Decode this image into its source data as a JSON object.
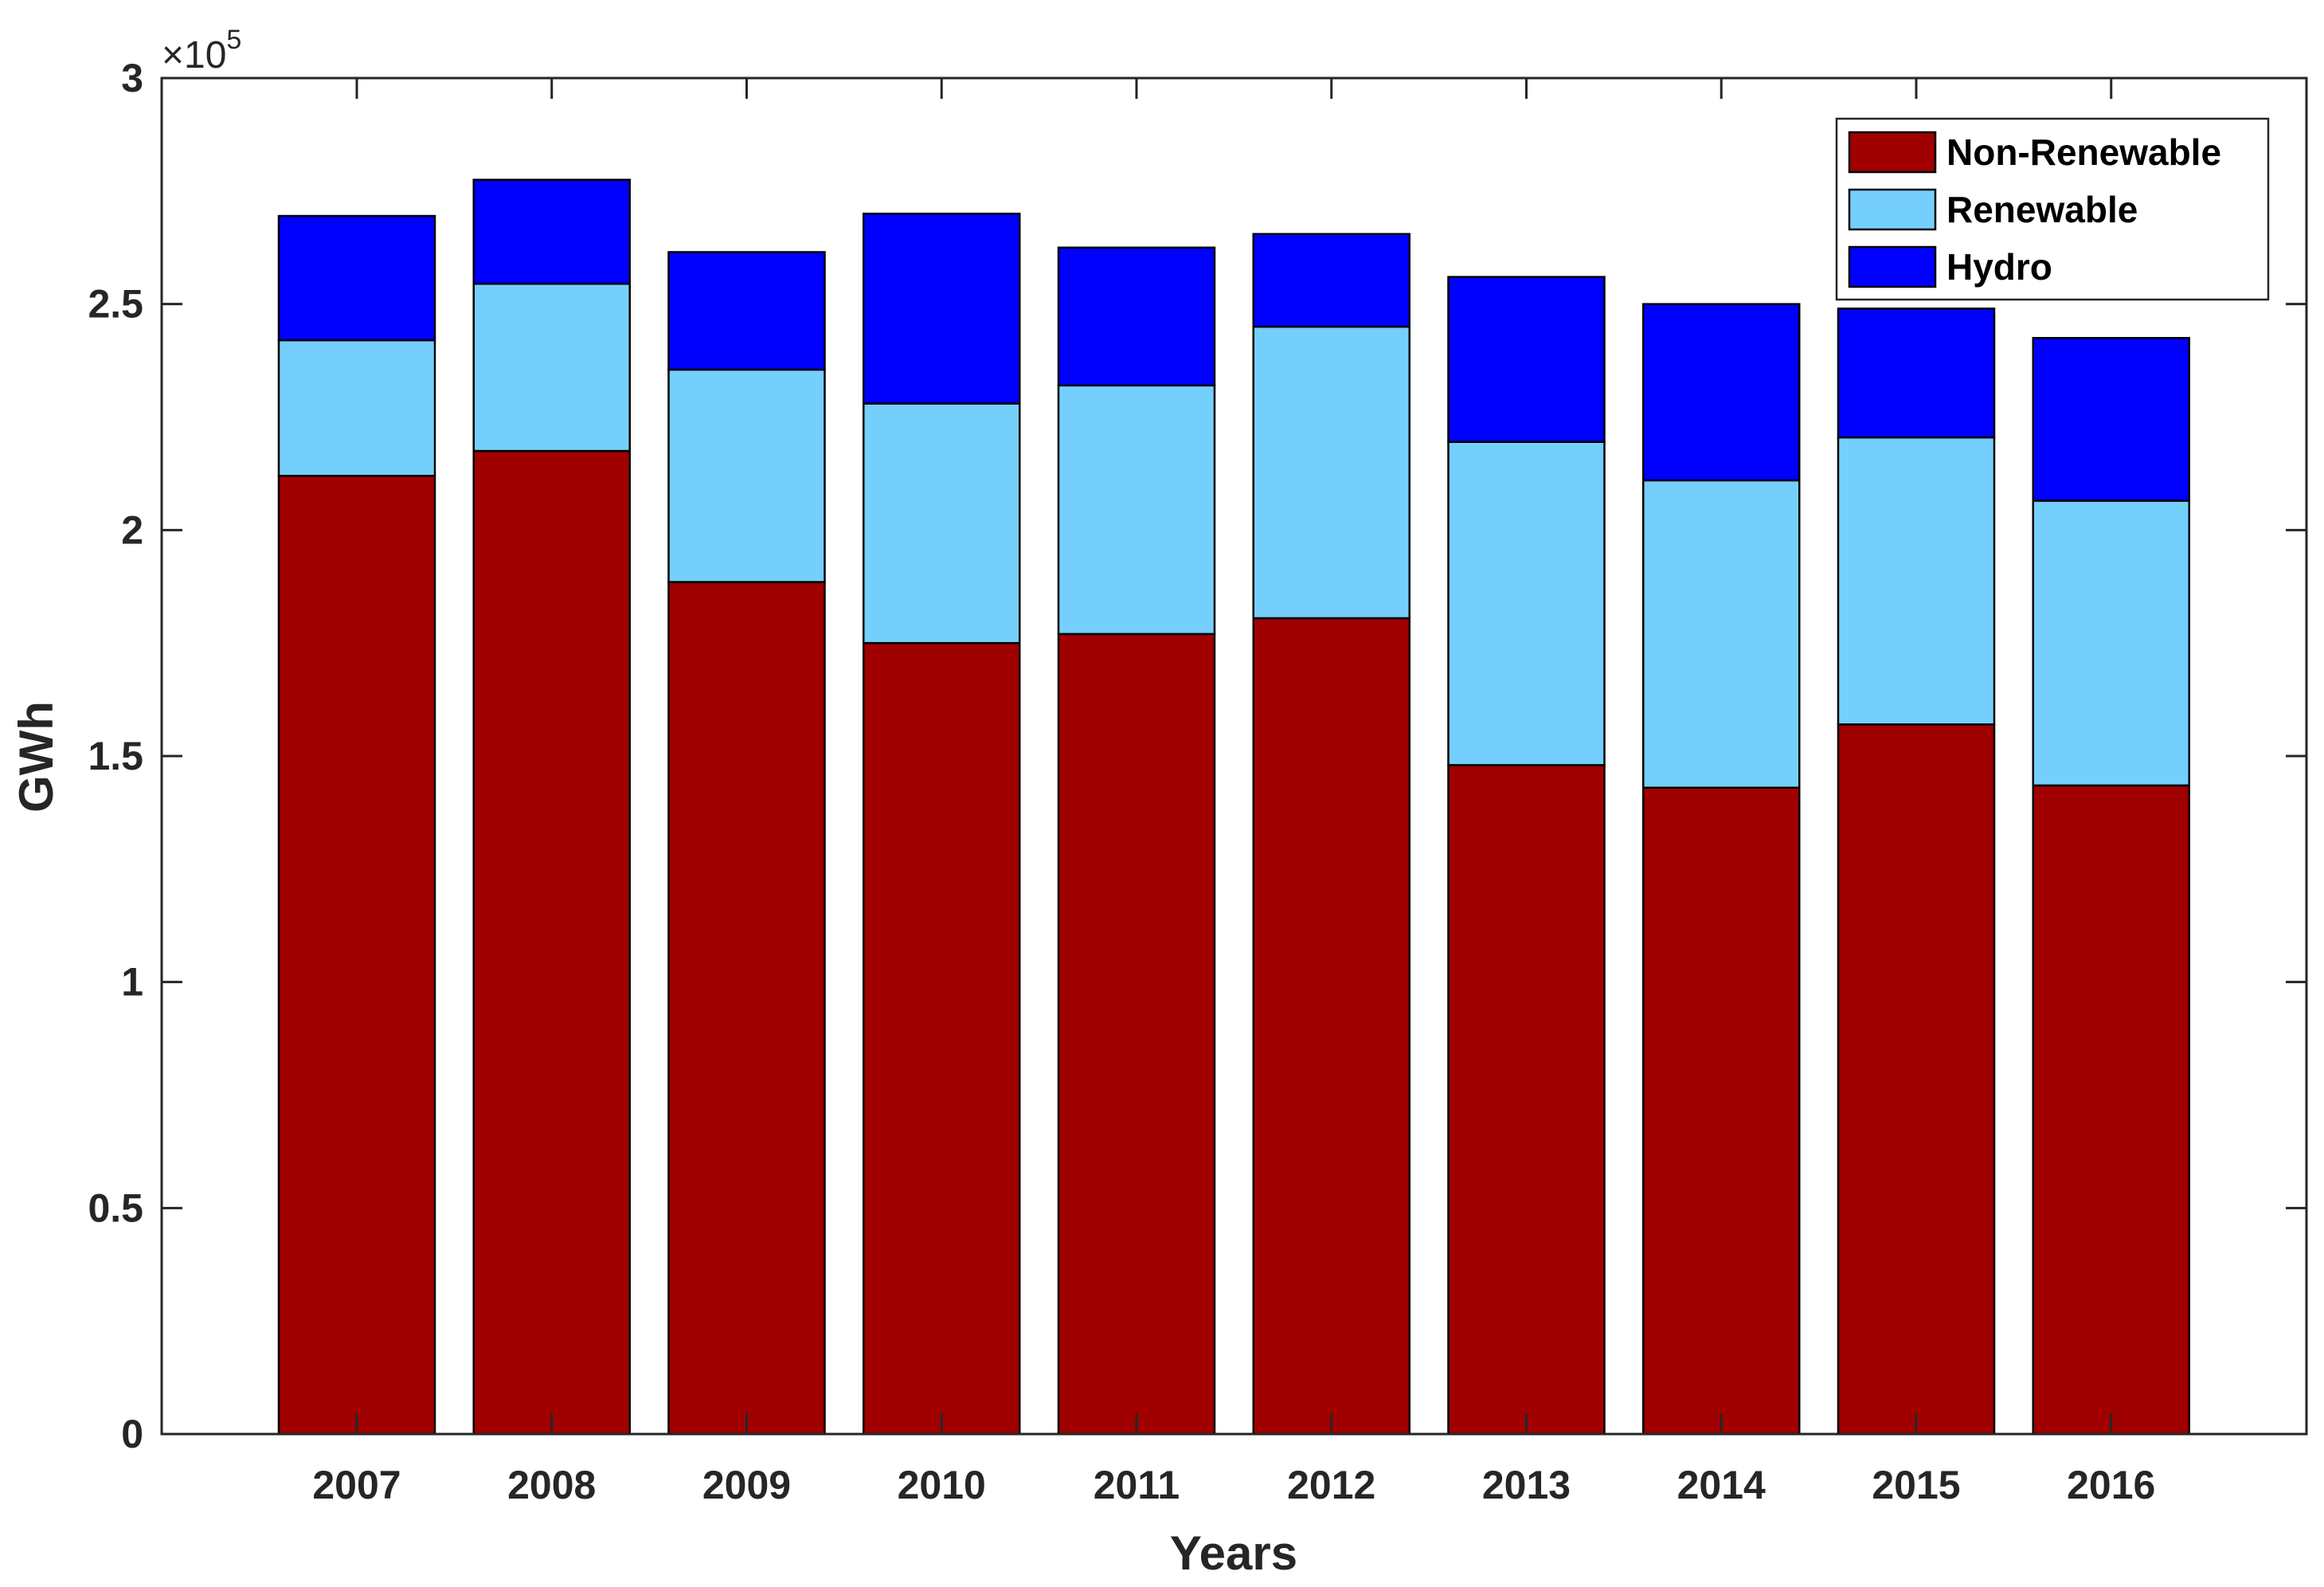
{
  "chart_data": {
    "type": "bar",
    "stacked": true,
    "title": "",
    "xlabel": "Years",
    "ylabel": "GWh",
    "y_scale_prefix": "×10",
    "y_scale_exponent": "5",
    "categories": [
      "2007",
      "2008",
      "2009",
      "2010",
      "2011",
      "2012",
      "2013",
      "2014",
      "2015",
      "2016"
    ],
    "ylim": [
      0,
      3
    ],
    "yticks": [
      0,
      0.5,
      1,
      1.5,
      2,
      2.5,
      3
    ],
    "ytick_labels": [
      "0",
      "0.5",
      "1",
      "1.5",
      "2",
      "2.5",
      "3"
    ],
    "legend_position": "top-right",
    "grid": false,
    "series": [
      {
        "name": "Non-Renewable",
        "color": "#A00000",
        "values": [
          2.12,
          2.175,
          1.885,
          1.75,
          1.77,
          1.805,
          1.48,
          1.43,
          1.57,
          1.435
        ]
      },
      {
        "name": "Renewable",
        "color": "#75CFFC",
        "values": [
          0.3,
          0.37,
          0.47,
          0.53,
          0.55,
          0.645,
          0.715,
          0.68,
          0.635,
          0.63
        ]
      },
      {
        "name": "Hydro",
        "color": "#0000FE",
        "values": [
          0.275,
          0.23,
          0.26,
          0.42,
          0.305,
          0.205,
          0.365,
          0.39,
          0.285,
          0.36
        ]
      }
    ]
  }
}
